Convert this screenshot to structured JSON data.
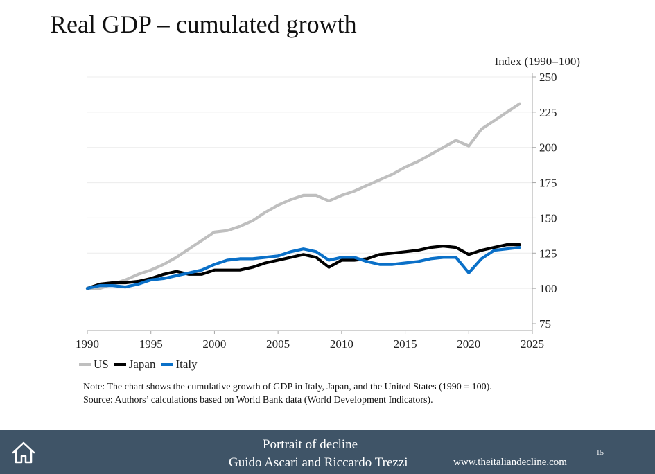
{
  "slide": {
    "title": "Real GDP – cumulated growth",
    "note": "Note: The chart shows the cumulative growth of GDP in Italy, Japan, and the United States (1990 = 100).",
    "source": "Source: Authors’ calculations based on World Bank data (World Development Indicators)."
  },
  "footer": {
    "title": "Portrait of decline",
    "authors": "Guido Ascari and Riccardo Trezzi",
    "url": "www.theitaliandecline.com",
    "page": "15",
    "home_icon": "home-icon",
    "background": "#3f5467"
  },
  "chart_data": {
    "type": "line",
    "ylabel": "Index (1990=100)",
    "xlim": [
      1990,
      2025
    ],
    "ylim": [
      75,
      250
    ],
    "xticks": [
      1990,
      1995,
      2000,
      2005,
      2010,
      2015,
      2020,
      2025
    ],
    "yticks": [
      75,
      100,
      125,
      150,
      175,
      200,
      225,
      250
    ],
    "y_axis_position": "right",
    "grid": true,
    "legend_position": "bottom-left",
    "x": [
      1990,
      1991,
      1992,
      1993,
      1994,
      1995,
      1996,
      1997,
      1998,
      1999,
      2000,
      2001,
      2002,
      2003,
      2004,
      2005,
      2006,
      2007,
      2008,
      2009,
      2010,
      2011,
      2012,
      2013,
      2014,
      2015,
      2016,
      2017,
      2018,
      2019,
      2020,
      2021,
      2022,
      2023,
      2024
    ],
    "series": [
      {
        "name": "US",
        "color": "#bfbfbf",
        "values": [
          100,
          100,
          103,
          106,
          110,
          113,
          117,
          122,
          128,
          134,
          140,
          141,
          144,
          148,
          154,
          159,
          163,
          166,
          166,
          162,
          166,
          169,
          173,
          177,
          181,
          186,
          190,
          195,
          200,
          205,
          201,
          213,
          219,
          225,
          231
        ]
      },
      {
        "name": "Japan",
        "color": "#000000",
        "values": [
          100,
          103,
          104,
          104,
          105,
          107,
          110,
          112,
          110,
          110,
          113,
          113,
          113,
          115,
          118,
          120,
          122,
          124,
          122,
          115,
          120,
          120,
          121,
          124,
          125,
          126,
          127,
          129,
          130,
          129,
          124,
          127,
          129,
          131,
          131
        ]
      },
      {
        "name": "Italy",
        "color": "#0a70c8",
        "values": [
          100,
          102,
          102,
          101,
          103,
          106,
          107,
          109,
          111,
          113,
          117,
          120,
          121,
          121,
          122,
          123,
          126,
          128,
          126,
          120,
          122,
          122,
          119,
          117,
          117,
          118,
          119,
          121,
          122,
          122,
          111,
          121,
          127,
          128,
          129
        ]
      }
    ]
  }
}
